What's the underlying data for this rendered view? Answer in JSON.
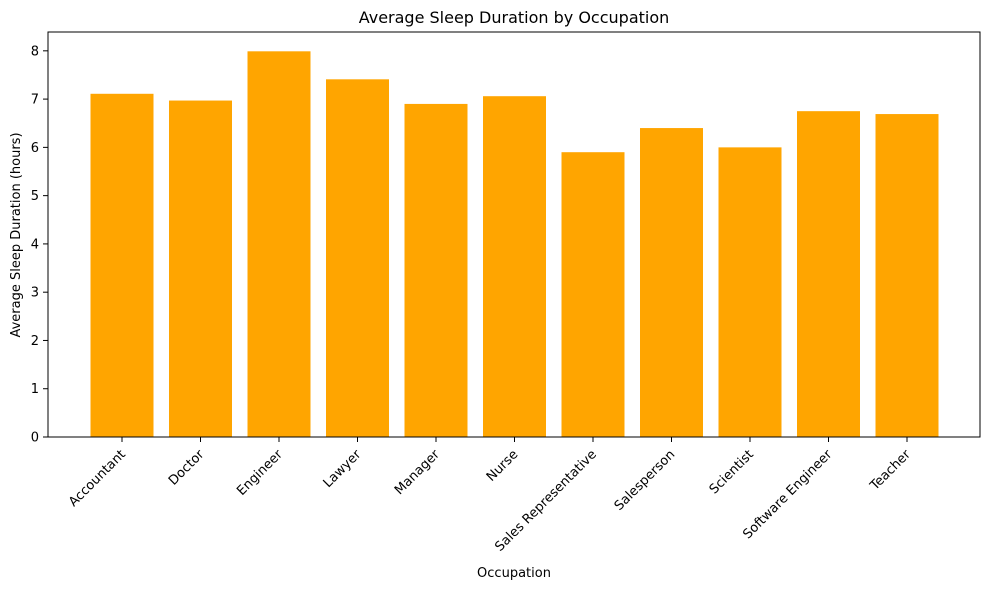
{
  "chart_data": {
    "type": "bar",
    "title": "Average Sleep Duration by Occupation",
    "xlabel": "Occupation",
    "ylabel": "Average Sleep Duration (hours)",
    "categories": [
      "Accountant",
      "Doctor",
      "Engineer",
      "Lawyer",
      "Manager",
      "Nurse",
      "Sales Representative",
      "Salesperson",
      "Scientist",
      "Software Engineer",
      "Teacher"
    ],
    "values": [
      7.11,
      6.97,
      7.99,
      7.41,
      6.9,
      7.06,
      5.9,
      6.4,
      6.0,
      6.75,
      6.69
    ],
    "ylim": [
      0,
      8.39
    ],
    "yticks": [
      0,
      1,
      2,
      3,
      4,
      5,
      6,
      7,
      8
    ],
    "bar_color": "#ffa500",
    "grid": false,
    "legend": false
  }
}
